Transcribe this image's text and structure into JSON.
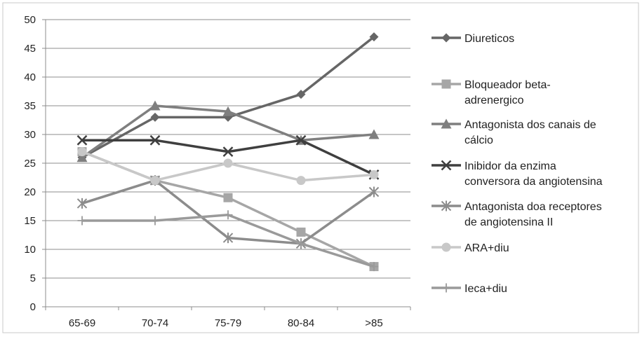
{
  "chart_data": {
    "type": "line",
    "categories": [
      "65-69",
      "70-74",
      "75-79",
      "80-84",
      ">85"
    ],
    "ylim": [
      0,
      50
    ],
    "yticks": [
      0,
      5,
      10,
      15,
      20,
      25,
      30,
      35,
      40,
      45,
      50
    ],
    "grid": "horizontal",
    "legend_position": "right",
    "series": [
      {
        "name": "Diureticos",
        "name_lines": [
          "Diureticos"
        ],
        "values": [
          26,
          33,
          33,
          37,
          47
        ],
        "marker": "diamond",
        "color": "#666666"
      },
      {
        "name": "Bloqueador beta-adrenergico",
        "name_lines": [
          "Bloqueador beta-",
          "adrenergico"
        ],
        "values": [
          27,
          22,
          19,
          13,
          7
        ],
        "marker": "square",
        "color": "#a6a6a6"
      },
      {
        "name": "Antagonista dos canais de cálcio",
        "name_lines": [
          "Antagonista dos canais de",
          "cálcio"
        ],
        "values": [
          26,
          35,
          34,
          29,
          30
        ],
        "marker": "triangle",
        "color": "#7f7f7f"
      },
      {
        "name": "Inibidor da enzima conversora da angiotensina",
        "name_lines": [
          "Inibidor da enzima",
          "conversora da angiotensina"
        ],
        "values": [
          29,
          29,
          27,
          29,
          23
        ],
        "marker": "x",
        "color": "#3f3f3f"
      },
      {
        "name": "Antagonista doa receptores de angiotensina II",
        "name_lines": [
          "Antagonista doa receptores",
          "de angiotensina II"
        ],
        "values": [
          18,
          22,
          12,
          11,
          20
        ],
        "marker": "star",
        "color": "#8c8c8c"
      },
      {
        "name": "ARA+diu",
        "name_lines": [
          "ARA+diu"
        ],
        "values": [
          27,
          22,
          25,
          22,
          23
        ],
        "marker": "circle",
        "color": "#c8c8c8"
      },
      {
        "name": "Ieca+diu",
        "name_lines": [
          "Ieca+diu"
        ],
        "values": [
          15,
          15,
          16,
          11,
          7
        ],
        "marker": "plus",
        "color": "#9a9a9a"
      }
    ]
  }
}
